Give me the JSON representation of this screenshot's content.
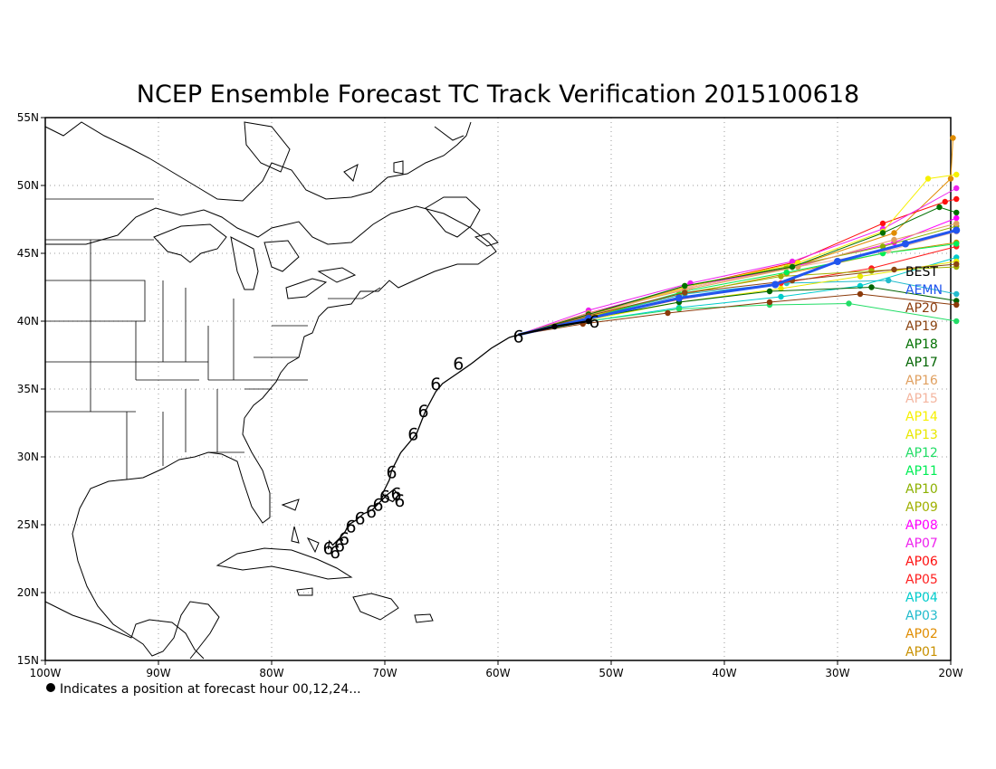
{
  "title": "NCEP Ensemble Forecast TC Track Verification 2015100618",
  "footnote": "Indicates a position at forecast hour 00,12,24...",
  "map": {
    "lon_range": [
      -100,
      -20
    ],
    "lat_range": [
      15,
      55
    ],
    "lon_ticks": [
      {
        "value": -100,
        "label": "100W"
      },
      {
        "value": -90,
        "label": "90W"
      },
      {
        "value": -80,
        "label": "80W"
      },
      {
        "value": -70,
        "label": "70W"
      },
      {
        "value": -60,
        "label": "60W"
      },
      {
        "value": -50,
        "label": "50W"
      },
      {
        "value": -40,
        "label": "40W"
      },
      {
        "value": -30,
        "label": "30W"
      },
      {
        "value": -20,
        "label": "20W"
      }
    ],
    "lat_ticks": [
      {
        "value": 15,
        "label": "15N"
      },
      {
        "value": 20,
        "label": "20N"
      },
      {
        "value": 25,
        "label": "25N"
      },
      {
        "value": 30,
        "label": "30N"
      },
      {
        "value": 35,
        "label": "35N"
      },
      {
        "value": 40,
        "label": "40N"
      },
      {
        "value": 45,
        "label": "45N"
      },
      {
        "value": 50,
        "label": "50N"
      },
      {
        "value": 55,
        "label": "55N"
      }
    ],
    "grid": true
  },
  "chart_data": {
    "type": "line",
    "x_axis": "longitude (deg E)",
    "y_axis": "latitude (deg N)",
    "observed_track": [
      [
        -75.0,
        23.2
      ],
      [
        -74.9,
        23.8
      ],
      [
        -74.6,
        23.5
      ],
      [
        -74.0,
        24.0
      ],
      [
        -73.5,
        24.5
      ],
      [
        -73.2,
        25.0
      ],
      [
        -72.6,
        25.3
      ],
      [
        -71.9,
        25.8
      ],
      [
        -71.1,
        26.1
      ],
      [
        -70.4,
        26.7
      ],
      [
        -69.8,
        27.2
      ],
      [
        -69.2,
        27.6
      ],
      [
        -68.8,
        27.2
      ],
      [
        -69.3,
        26.7
      ],
      [
        -69.8,
        26.9
      ],
      [
        -70.2,
        27.3
      ],
      [
        -69.6,
        28.3
      ],
      [
        -69.4,
        29.0
      ],
      [
        -68.6,
        30.3
      ],
      [
        -67.2,
        31.7
      ],
      [
        -66.4,
        33.4
      ],
      [
        -65.5,
        34.8
      ],
      [
        -64.9,
        35.4
      ],
      [
        -63.5,
        36.2
      ],
      [
        -62.3,
        36.9
      ],
      [
        -60.6,
        38.0
      ],
      [
        -59.0,
        38.8
      ],
      [
        -58.2,
        39.0
      ]
    ],
    "storm_symbols": [
      [
        -75.0,
        23.3
      ],
      [
        -74.4,
        23.0
      ],
      [
        -74.0,
        23.5
      ],
      [
        -73.6,
        24.0
      ],
      [
        -73.0,
        24.9
      ],
      [
        -72.2,
        25.5
      ],
      [
        -71.2,
        26.0
      ],
      [
        -70.6,
        26.5
      ],
      [
        -70.0,
        27.1
      ],
      [
        -69.0,
        27.3
      ],
      [
        -68.7,
        26.8
      ],
      [
        -69.4,
        28.9
      ],
      [
        -67.5,
        31.7
      ],
      [
        -66.6,
        33.4
      ],
      [
        -65.5,
        35.4
      ],
      [
        -63.5,
        36.9
      ],
      [
        -58.2,
        38.9
      ],
      [
        -51.5,
        40.0
      ]
    ],
    "series": [
      {
        "name": "BEST",
        "color": "#000000",
        "points": [
          [
            -58.2,
            39.0
          ],
          [
            -55.0,
            39.6
          ],
          [
            -52.0,
            40.0
          ]
        ]
      },
      {
        "name": "AEMN",
        "color": "#2255ee",
        "points": [
          [
            -58.2,
            39.0
          ],
          [
            -52.0,
            40.2
          ],
          [
            -44.0,
            41.7
          ],
          [
            -35.5,
            42.7
          ],
          [
            -30.0,
            44.4
          ],
          [
            -24.0,
            45.7
          ],
          [
            -19.5,
            46.7
          ]
        ]
      },
      {
        "name": "AP20",
        "color": "#8b3a0a",
        "points": [
          [
            -58.2,
            39.0
          ],
          [
            -52.5,
            39.8
          ],
          [
            -45.0,
            40.6
          ],
          [
            -36.0,
            41.4
          ],
          [
            -28.0,
            42.0
          ],
          [
            -19.5,
            41.2
          ]
        ]
      },
      {
        "name": "AP19",
        "color": "#8b4513",
        "points": [
          [
            -58.2,
            39.0
          ],
          [
            -52.0,
            40.4
          ],
          [
            -43.5,
            42.1
          ],
          [
            -34.0,
            43.0
          ],
          [
            -25.0,
            43.8
          ],
          [
            -19.5,
            44.2
          ]
        ]
      },
      {
        "name": "AP18",
        "color": "#007000",
        "points": [
          [
            -58.2,
            39.0
          ],
          [
            -52.0,
            40.5
          ],
          [
            -43.5,
            42.6
          ],
          [
            -34.0,
            44.0
          ],
          [
            -26.0,
            46.5
          ],
          [
            -21.0,
            48.4
          ],
          [
            -19.5,
            48.0
          ]
        ]
      },
      {
        "name": "AP17",
        "color": "#006400",
        "points": [
          [
            -58.2,
            39.0
          ],
          [
            -52.0,
            40.2
          ],
          [
            -44.0,
            41.4
          ],
          [
            -36.0,
            42.2
          ],
          [
            -27.0,
            42.5
          ],
          [
            -19.5,
            41.5
          ]
        ]
      },
      {
        "name": "AP16",
        "color": "#e0a060",
        "points": [
          [
            -58.2,
            39.0
          ],
          [
            -52.0,
            40.6
          ],
          [
            -43.5,
            42.3
          ],
          [
            -33.5,
            44.0
          ],
          [
            -25.0,
            46.0
          ],
          [
            -19.5,
            47.2
          ]
        ]
      },
      {
        "name": "AP15",
        "color": "#f4b6a0",
        "points": [
          [
            -58.2,
            39.0
          ],
          [
            -52.0,
            40.4
          ],
          [
            -43.0,
            42.5
          ],
          [
            -33.5,
            44.0
          ],
          [
            -25.5,
            45.2
          ],
          [
            -19.5,
            46.6
          ]
        ]
      },
      {
        "name": "AP14",
        "color": "#f6f000",
        "points": [
          [
            -58.2,
            39.0
          ],
          [
            -52.0,
            40.3
          ],
          [
            -43.5,
            42.5
          ],
          [
            -33.5,
            44.3
          ],
          [
            -26.0,
            46.6
          ],
          [
            -22.0,
            50.5
          ],
          [
            -19.5,
            50.8
          ]
        ]
      },
      {
        "name": "AP13",
        "color": "#e8e800",
        "points": [
          [
            -58.2,
            39.0
          ],
          [
            -52.0,
            40.1
          ],
          [
            -44.0,
            41.4
          ],
          [
            -35.0,
            42.4
          ],
          [
            -28.0,
            43.3
          ],
          [
            -19.5,
            44.4
          ]
        ]
      },
      {
        "name": "AP12",
        "color": "#22dd66",
        "points": [
          [
            -58.2,
            39.0
          ],
          [
            -52.0,
            40.0
          ],
          [
            -44.0,
            40.9
          ],
          [
            -36.0,
            41.2
          ],
          [
            -29.0,
            41.3
          ],
          [
            -19.5,
            40.0
          ]
        ]
      },
      {
        "name": "AP11",
        "color": "#00ee55",
        "points": [
          [
            -58.2,
            39.0
          ],
          [
            -52.0,
            40.2
          ],
          [
            -43.5,
            42.2
          ],
          [
            -34.5,
            43.6
          ],
          [
            -26.0,
            45.0
          ],
          [
            -19.5,
            45.7
          ]
        ]
      },
      {
        "name": "AP10",
        "color": "#8cb000",
        "points": [
          [
            -58.2,
            39.0
          ],
          [
            -52.0,
            40.4
          ],
          [
            -43.5,
            42.6
          ],
          [
            -34.5,
            44.0
          ],
          [
            -26.0,
            45.5
          ],
          [
            -19.5,
            47.0
          ]
        ]
      },
      {
        "name": "AP09",
        "color": "#a0b000",
        "points": [
          [
            -58.2,
            39.0
          ],
          [
            -52.0,
            40.3
          ],
          [
            -44.0,
            42.0
          ],
          [
            -35.0,
            43.3
          ],
          [
            -27.0,
            43.7
          ],
          [
            -19.5,
            44.0
          ]
        ]
      },
      {
        "name": "AP08",
        "color": "#ff00ff",
        "points": [
          [
            -58.2,
            39.0
          ],
          [
            -52.0,
            40.6
          ],
          [
            -43.0,
            42.6
          ],
          [
            -34.0,
            44.0
          ],
          [
            -25.0,
            45.8
          ],
          [
            -19.5,
            47.6
          ]
        ]
      },
      {
        "name": "AP07",
        "color": "#ee22ee",
        "points": [
          [
            -58.2,
            39.0
          ],
          [
            -52.0,
            40.8
          ],
          [
            -43.0,
            42.8
          ],
          [
            -34.0,
            44.4
          ],
          [
            -26.0,
            46.8
          ],
          [
            -19.5,
            49.8
          ]
        ]
      },
      {
        "name": "AP06",
        "color": "#ff1010",
        "points": [
          [
            -58.2,
            39.0
          ],
          [
            -52.0,
            40.6
          ],
          [
            -43.5,
            42.5
          ],
          [
            -34.0,
            44.3
          ],
          [
            -26.0,
            47.2
          ],
          [
            -20.5,
            48.8
          ],
          [
            -19.5,
            49.0
          ]
        ]
      },
      {
        "name": "AP05",
        "color": "#ff2020",
        "points": [
          [
            -58.2,
            39.0
          ],
          [
            -52.0,
            40.2
          ],
          [
            -44.0,
            41.6
          ],
          [
            -35.0,
            42.8
          ],
          [
            -27.0,
            43.9
          ],
          [
            -19.5,
            45.5
          ]
        ]
      },
      {
        "name": "AP04",
        "color": "#00cccc",
        "points": [
          [
            -58.2,
            39.0
          ],
          [
            -52.0,
            40.0
          ],
          [
            -44.0,
            41.0
          ],
          [
            -35.0,
            41.8
          ],
          [
            -28.0,
            42.6
          ],
          [
            -19.5,
            44.7
          ]
        ]
      },
      {
        "name": "AP03",
        "color": "#22bbcc",
        "points": [
          [
            -58.2,
            39.0
          ],
          [
            -52.0,
            40.3
          ],
          [
            -43.5,
            42.0
          ],
          [
            -34.5,
            42.8
          ],
          [
            -25.5,
            43.0
          ],
          [
            -19.5,
            42.0
          ]
        ]
      },
      {
        "name": "AP02",
        "color": "#e08c00",
        "points": [
          [
            -58.2,
            39.0
          ],
          [
            -52.0,
            40.5
          ],
          [
            -43.5,
            42.4
          ],
          [
            -34.0,
            44.0
          ],
          [
            -25.0,
            46.5
          ],
          [
            -20.0,
            50.5
          ],
          [
            -19.8,
            53.5
          ]
        ]
      },
      {
        "name": "AP01",
        "color": "#c89000",
        "points": [
          [
            -58.2,
            39.0
          ],
          [
            -52.0,
            40.3
          ],
          [
            -43.5,
            42.0
          ],
          [
            -34.5,
            43.5
          ],
          [
            -26.0,
            45.0
          ],
          [
            -19.5,
            45.8
          ]
        ]
      }
    ]
  }
}
